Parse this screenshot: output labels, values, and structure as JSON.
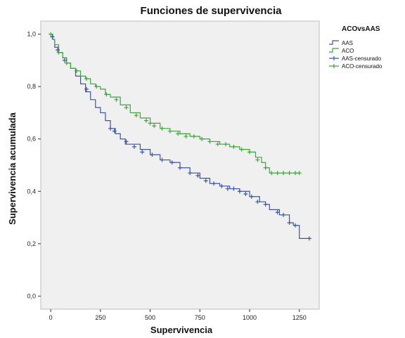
{
  "chart_data": {
    "type": "line",
    "title": "Funciones de supervivencia",
    "xlabel": "Supervivencia",
    "ylabel": "Supervivencia acumulada",
    "xlim": [
      -50,
      1350
    ],
    "ylim": [
      -0.05,
      1.05
    ],
    "xticks": [
      0,
      250,
      500,
      750,
      1000,
      1250
    ],
    "yticks": [
      0.0,
      0.2,
      0.4,
      0.6,
      0.8,
      1.0
    ],
    "xtick_labels": [
      "0",
      "250",
      "500",
      "750",
      "1000",
      "1250"
    ],
    "ytick_labels": [
      "0,0",
      "0,2",
      "0,4",
      "0,6",
      "0,8",
      "1,0"
    ],
    "grid": false,
    "plot_background": "#f0f0f0",
    "legend": {
      "title": "ACOvsAAS",
      "placement": "right",
      "entries": [
        "AAS",
        "ACO",
        "AAS-censurado",
        "ACO-censurado"
      ]
    },
    "series": [
      {
        "name": "AAS",
        "color": "#3b54a5",
        "x": [
          0,
          10,
          20,
          40,
          60,
          80,
          100,
          125,
          150,
          175,
          200,
          225,
          250,
          275,
          300,
          325,
          350,
          375,
          400,
          450,
          500,
          550,
          600,
          650,
          700,
          750,
          800,
          850,
          900,
          950,
          1000,
          1050,
          1080,
          1100,
          1150,
          1200,
          1220,
          1250,
          1300
        ],
        "y": [
          1.0,
          0.98,
          0.95,
          0.93,
          0.91,
          0.89,
          0.87,
          0.84,
          0.81,
          0.78,
          0.75,
          0.72,
          0.7,
          0.67,
          0.64,
          0.62,
          0.6,
          0.58,
          0.58,
          0.56,
          0.54,
          0.52,
          0.51,
          0.49,
          0.47,
          0.45,
          0.43,
          0.42,
          0.41,
          0.4,
          0.38,
          0.36,
          0.35,
          0.33,
          0.31,
          0.28,
          0.27,
          0.22,
          0.22
        ]
      },
      {
        "name": "ACO",
        "color": "#3aa83a",
        "x": [
          0,
          10,
          20,
          40,
          60,
          80,
          100,
          125,
          150,
          175,
          200,
          225,
          250,
          275,
          300,
          350,
          400,
          450,
          500,
          550,
          600,
          650,
          700,
          750,
          800,
          850,
          900,
          950,
          1000,
          1030,
          1060,
          1080,
          1100,
          1150,
          1200,
          1250
        ],
        "y": [
          1.0,
          0.98,
          0.96,
          0.93,
          0.91,
          0.89,
          0.87,
          0.86,
          0.84,
          0.83,
          0.81,
          0.8,
          0.79,
          0.77,
          0.76,
          0.73,
          0.7,
          0.68,
          0.66,
          0.64,
          0.63,
          0.62,
          0.61,
          0.6,
          0.59,
          0.58,
          0.57,
          0.56,
          0.55,
          0.53,
          0.51,
          0.49,
          0.47,
          0.47,
          0.47,
          0.47
        ]
      }
    ],
    "censored": [
      {
        "name": "AAS-censurado",
        "color": "#3b54a5",
        "x": [
          8,
          35,
          70,
          180,
          300,
          320,
          380,
          420,
          460,
          510,
          560,
          610,
          650,
          700,
          740,
          780,
          820,
          860,
          890,
          920,
          950,
          980,
          1010,
          1040,
          1080,
          1140,
          1170,
          1200,
          1230,
          1300
        ],
        "y": [
          0.99,
          0.94,
          0.9,
          0.79,
          0.64,
          0.63,
          0.59,
          0.57,
          0.55,
          0.54,
          0.52,
          0.51,
          0.49,
          0.47,
          0.46,
          0.44,
          0.43,
          0.42,
          0.41,
          0.41,
          0.4,
          0.39,
          0.38,
          0.36,
          0.35,
          0.32,
          0.31,
          0.28,
          0.27,
          0.22
        ]
      },
      {
        "name": "ACO-censurado",
        "color": "#3aa83a",
        "x": [
          0,
          40,
          80,
          130,
          180,
          230,
          280,
          330,
          380,
          430,
          480,
          500,
          520,
          560,
          600,
          640,
          680,
          720,
          760,
          800,
          840,
          880,
          920,
          960,
          1000,
          1040,
          1080,
          1110,
          1140,
          1170,
          1200,
          1230,
          1250
        ],
        "y": [
          1.0,
          0.93,
          0.89,
          0.86,
          0.83,
          0.8,
          0.77,
          0.75,
          0.72,
          0.69,
          0.67,
          0.66,
          0.65,
          0.64,
          0.63,
          0.62,
          0.61,
          0.61,
          0.6,
          0.59,
          0.58,
          0.58,
          0.57,
          0.56,
          0.55,
          0.52,
          0.49,
          0.47,
          0.47,
          0.47,
          0.47,
          0.47,
          0.47
        ]
      }
    ]
  }
}
